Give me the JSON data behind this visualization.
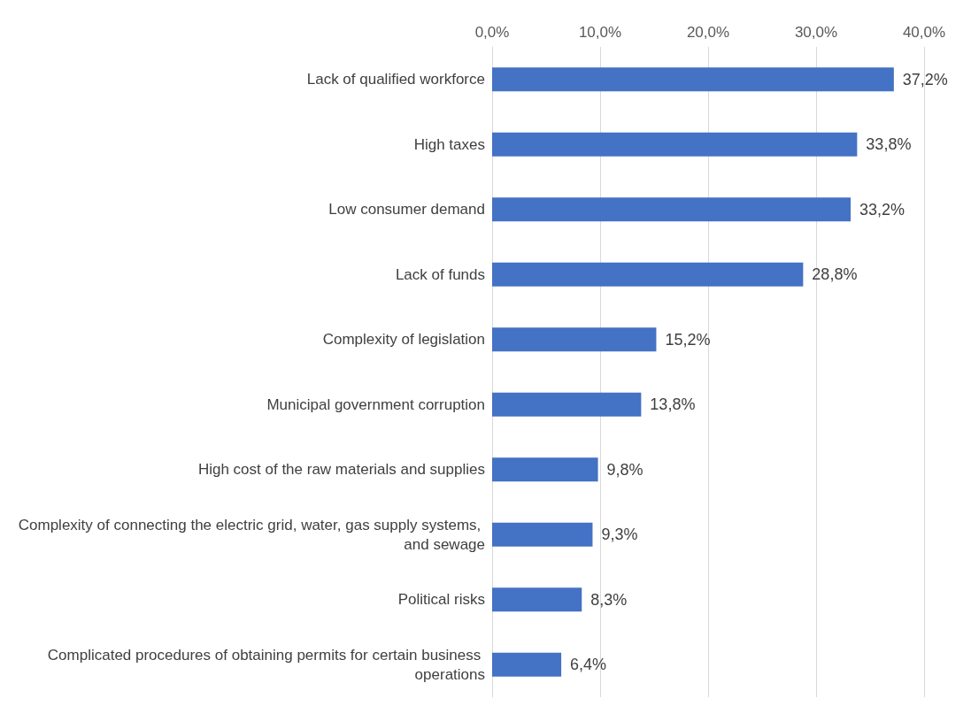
{
  "chart_data": {
    "type": "bar",
    "orientation": "horizontal",
    "categories": [
      "Lack of qualified workforce",
      "High taxes",
      "Low consumer demand",
      "Lack of funds",
      "Complexity of legislation",
      "Municipal government corruption",
      "High cost of the raw materials and supplies",
      "Complexity of connecting the electric grid, water, gas supply systems, and sewage",
      "Political risks",
      "Complicated procedures of obtaining permits for certain business operations"
    ],
    "values": [
      37.2,
      33.8,
      33.2,
      28.8,
      15.2,
      13.8,
      9.8,
      9.3,
      8.3,
      6.4
    ],
    "value_labels": [
      "37,2%",
      "33,8%",
      "33,2%",
      "28,8%",
      "15,2%",
      "13,8%",
      "9,8%",
      "9,3%",
      "8,3%",
      "6,4%"
    ],
    "color": "#4472c4",
    "xlim": [
      0,
      40
    ],
    "xticks": [
      {
        "value": 0,
        "label": "0,0%"
      },
      {
        "value": 10,
        "label": "10,0%"
      },
      {
        "value": 20,
        "label": "20,0%"
      },
      {
        "value": 30,
        "label": "30,0%"
      },
      {
        "value": 40,
        "label": "40,0%"
      }
    ],
    "grid": "x"
  }
}
